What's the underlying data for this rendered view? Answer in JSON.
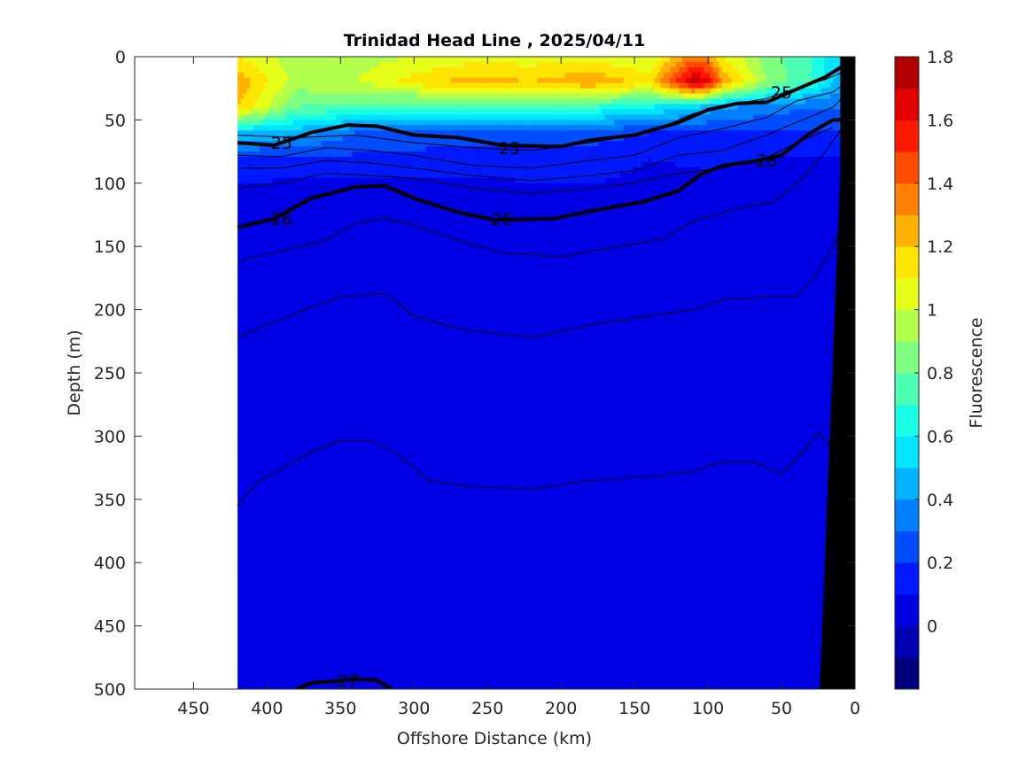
{
  "chart_data": {
    "type": "heatmap",
    "title": "Trinidad Head Line , 2025/04/11",
    "xlabel": "Offshore Distance (km)",
    "ylabel": "Depth (m)",
    "colorbar_label": "Fluorescence",
    "xlim": [
      490,
      0
    ],
    "ylim": [
      0,
      500
    ],
    "x_reversed": true,
    "y_reversed": true,
    "xticks": [
      450,
      400,
      350,
      300,
      250,
      200,
      150,
      100,
      50,
      0
    ],
    "yticks": [
      0,
      50,
      100,
      150,
      200,
      250,
      300,
      350,
      400,
      450,
      500
    ],
    "colorbar": {
      "range": [
        -0.2,
        1.8
      ],
      "step": 0.1,
      "ticks": [
        0,
        0.2,
        0.4,
        0.6,
        0.8,
        1,
        1.2,
        1.4,
        1.6,
        1.8
      ],
      "colors": [
        "#00007f",
        "#0000b2",
        "#0000e5",
        "#0019ff",
        "#004cff",
        "#007fff",
        "#00b2ff",
        "#00e5ff",
        "#19ffe5",
        "#4cffb2",
        "#7fff7f",
        "#b2ff4c",
        "#e5ff19",
        "#ffe500",
        "#ffb200",
        "#ff7f00",
        "#ff4c00",
        "#ff1900",
        "#e50000",
        "#b20000"
      ]
    },
    "data_extent_km": [
      420,
      0
    ],
    "fluorescence_field": {
      "x": [
        420,
        380,
        340,
        300,
        260,
        220,
        180,
        140,
        110,
        100,
        90,
        60,
        30,
        10
      ],
      "depth": [
        0,
        20,
        40,
        60,
        80,
        100,
        140,
        200,
        300,
        400,
        500
      ],
      "values": [
        [
          1.1,
          0.95,
          0.95,
          1.0,
          1.05,
          1.05,
          1.05,
          1.0,
          1.35,
          1.3,
          1.1,
          0.85,
          0.7,
          0.5
        ],
        [
          1.28,
          0.95,
          1.0,
          1.15,
          1.25,
          1.2,
          1.3,
          1.15,
          1.75,
          1.65,
          1.3,
          0.9,
          0.7,
          0.45
        ],
        [
          1.2,
          0.8,
          0.75,
          0.7,
          0.75,
          0.75,
          0.7,
          0.6,
          0.5,
          0.45,
          0.4,
          0.35,
          0.3,
          0.3
        ],
        [
          0.5,
          0.45,
          0.3,
          0.3,
          0.25,
          0.25,
          0.25,
          0.2,
          0.2,
          0.2,
          0.2,
          0.2,
          0.2,
          0.2
        ],
        [
          0.2,
          0.2,
          0.18,
          0.15,
          0.15,
          0.15,
          0.15,
          0.1,
          0.12,
          0.15,
          0.12,
          0.1,
          0.1,
          0.1
        ],
        [
          0.1,
          0.08,
          0.08,
          0.08,
          0.08,
          0.1,
          0.1,
          0.08,
          0.06,
          0.06,
          0.06,
          0.06,
          0.06,
          0.06
        ],
        [
          0.05,
          0.05,
          0.05,
          0.05,
          0.05,
          0.05,
          0.05,
          0.05,
          0.05,
          0.05,
          0.05,
          0.05,
          0.05,
          0.05
        ],
        [
          0.05,
          0.05,
          0.05,
          0.05,
          0.05,
          0.05,
          0.05,
          0.05,
          0.05,
          0.05,
          0.05,
          0.05,
          0.05,
          0.05
        ],
        [
          0.05,
          0.05,
          0.05,
          0.05,
          0.05,
          0.05,
          0.05,
          0.05,
          0.05,
          0.05,
          0.05,
          0.05,
          0.05,
          0.05
        ],
        [
          0.05,
          0.05,
          0.05,
          0.05,
          0.05,
          0.05,
          0.05,
          0.05,
          0.05,
          0.05,
          0.05,
          0.05,
          0.05,
          0.05
        ],
        [
          0.05,
          0.05,
          0.05,
          0.05,
          0.05,
          0.05,
          0.05,
          0.05,
          0.05,
          0.05,
          0.05,
          0.05,
          0.05,
          0.05
        ]
      ]
    },
    "density_contours": [
      {
        "label": "25",
        "bold": true,
        "label_at": [
          [
            390,
            68
          ],
          [
            235,
            72
          ],
          [
            50,
            28
          ]
        ],
        "points": [
          [
            420,
            68
          ],
          [
            395,
            70
          ],
          [
            370,
            60
          ],
          [
            345,
            54
          ],
          [
            325,
            55
          ],
          [
            300,
            62
          ],
          [
            270,
            64
          ],
          [
            240,
            70
          ],
          [
            200,
            71
          ],
          [
            180,
            66
          ],
          [
            150,
            62
          ],
          [
            120,
            52
          ],
          [
            100,
            42
          ],
          [
            80,
            37
          ],
          [
            60,
            36
          ],
          [
            40,
            26
          ],
          [
            20,
            16
          ],
          [
            5,
            5
          ]
        ]
      },
      {
        "label": "26",
        "bold": true,
        "label_at": [
          [
            390,
            128
          ],
          [
            240,
            128
          ],
          [
            60,
            82
          ]
        ],
        "points": [
          [
            420,
            135
          ],
          [
            395,
            128
          ],
          [
            370,
            112
          ],
          [
            340,
            103
          ],
          [
            320,
            102
          ],
          [
            300,
            112
          ],
          [
            270,
            123
          ],
          [
            245,
            129
          ],
          [
            205,
            128
          ],
          [
            175,
            121
          ],
          [
            145,
            115
          ],
          [
            120,
            106
          ],
          [
            105,
            93
          ],
          [
            90,
            86
          ],
          [
            70,
            83
          ],
          [
            50,
            78
          ],
          [
            30,
            60
          ],
          [
            15,
            50
          ],
          [
            10,
            50
          ]
        ]
      },
      {
        "label": "27",
        "bold": true,
        "label_at": [
          [
            345,
            493
          ]
        ],
        "points": [
          [
            380,
            500
          ],
          [
            370,
            495
          ],
          [
            355,
            494
          ],
          [
            340,
            492
          ],
          [
            325,
            493
          ],
          [
            315,
            500
          ]
        ]
      },
      {
        "label": "",
        "bold": false,
        "points": [
          [
            420,
            62
          ],
          [
            380,
            64
          ],
          [
            340,
            62
          ],
          [
            300,
            68
          ],
          [
            260,
            72
          ],
          [
            220,
            74
          ],
          [
            180,
            68
          ],
          [
            140,
            60
          ],
          [
            110,
            45
          ],
          [
            85,
            38
          ],
          [
            60,
            33
          ],
          [
            40,
            25
          ],
          [
            20,
            18
          ],
          [
            8,
            12
          ]
        ]
      },
      {
        "label": "",
        "bold": false,
        "points": [
          [
            420,
            78
          ],
          [
            390,
            79
          ],
          [
            360,
            72
          ],
          [
            330,
            74
          ],
          [
            300,
            78
          ],
          [
            260,
            86
          ],
          [
            220,
            88
          ],
          [
            180,
            82
          ],
          [
            150,
            78
          ],
          [
            120,
            64
          ],
          [
            90,
            57
          ],
          [
            60,
            48
          ],
          [
            40,
            35
          ],
          [
            15,
            28
          ],
          [
            8,
            22
          ]
        ]
      },
      {
        "label": "",
        "bold": false,
        "points": [
          [
            420,
            88
          ],
          [
            390,
            88
          ],
          [
            360,
            82
          ],
          [
            330,
            84
          ],
          [
            300,
            88
          ],
          [
            260,
            94
          ],
          [
            220,
            98
          ],
          [
            180,
            94
          ],
          [
            150,
            90
          ],
          [
            120,
            78
          ],
          [
            90,
            74
          ],
          [
            60,
            62
          ],
          [
            40,
            52
          ],
          [
            15,
            40
          ],
          [
            8,
            32
          ]
        ]
      },
      {
        "label": "",
        "bold": false,
        "points": [
          [
            420,
            104
          ],
          [
            390,
            100
          ],
          [
            360,
            92
          ],
          [
            330,
            94
          ],
          [
            300,
            96
          ],
          [
            260,
            104
          ],
          [
            220,
            108
          ],
          [
            180,
            104
          ],
          [
            150,
            100
          ],
          [
            120,
            92
          ],
          [
            90,
            88
          ],
          [
            60,
            80
          ],
          [
            40,
            68
          ],
          [
            15,
            56
          ]
        ]
      },
      {
        "label": "",
        "bold": false,
        "points": [
          [
            420,
            162
          ],
          [
            395,
            155
          ],
          [
            360,
            145
          ],
          [
            340,
            132
          ],
          [
            320,
            128
          ],
          [
            300,
            133
          ],
          [
            270,
            145
          ],
          [
            240,
            155
          ],
          [
            200,
            158
          ],
          [
            160,
            150
          ],
          [
            130,
            144
          ],
          [
            110,
            130
          ],
          [
            80,
            120
          ],
          [
            55,
            115
          ],
          [
            35,
            95
          ],
          [
            20,
            75
          ],
          [
            10,
            58
          ]
        ]
      },
      {
        "label": "",
        "bold": false,
        "points": [
          [
            420,
            222
          ],
          [
            400,
            212
          ],
          [
            370,
            198
          ],
          [
            350,
            190
          ],
          [
            320,
            187
          ],
          [
            300,
            205
          ],
          [
            270,
            215
          ],
          [
            220,
            222
          ],
          [
            180,
            212
          ],
          [
            140,
            205
          ],
          [
            110,
            200
          ],
          [
            90,
            192
          ],
          [
            60,
            190
          ],
          [
            40,
            190
          ],
          [
            25,
            170
          ],
          [
            15,
            150
          ],
          [
            10,
            138
          ]
        ]
      },
      {
        "label": "",
        "bold": false,
        "points": [
          [
            420,
            355
          ],
          [
            405,
            335
          ],
          [
            370,
            313
          ],
          [
            350,
            303
          ],
          [
            330,
            303
          ],
          [
            310,
            315
          ],
          [
            290,
            335
          ],
          [
            260,
            340
          ],
          [
            220,
            342
          ],
          [
            180,
            335
          ],
          [
            140,
            332
          ],
          [
            110,
            328
          ],
          [
            90,
            320
          ],
          [
            70,
            320
          ],
          [
            50,
            330
          ],
          [
            30,
            305
          ],
          [
            25,
            297
          ],
          [
            15,
            310
          ]
        ]
      }
    ],
    "bathymetry": {
      "fill": "#000000",
      "polygon": [
        [
          10,
          0
        ],
        [
          6,
          0
        ],
        [
          0,
          0
        ],
        [
          0,
          500
        ],
        [
          24,
          500
        ],
        [
          10,
          90
        ]
      ]
    }
  }
}
